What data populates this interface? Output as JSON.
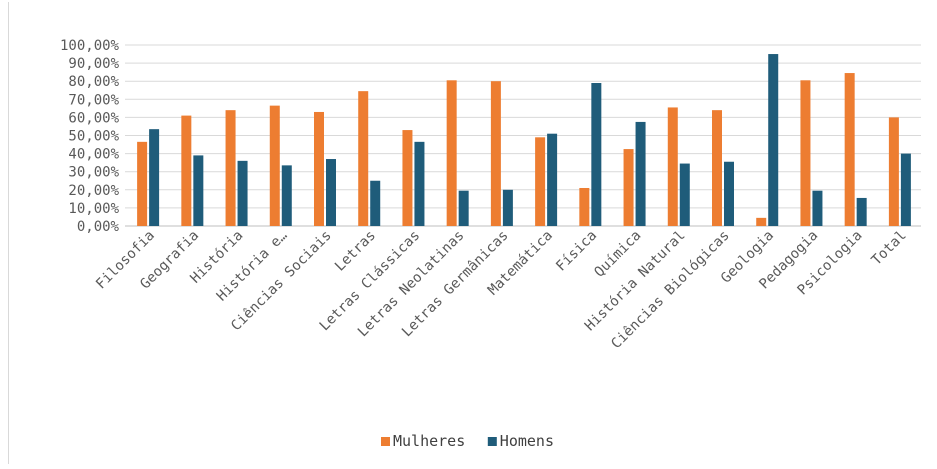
{
  "chart_data": {
    "type": "bar",
    "title": "",
    "xlabel": "",
    "ylabel": "",
    "ylim": [
      0,
      100
    ],
    "y_ticks": [
      "0,00%",
      "10,00%",
      "20,00%",
      "30,00%",
      "40,00%",
      "50,00%",
      "60,00%",
      "70,00%",
      "80,00%",
      "90,00%",
      "100,00%"
    ],
    "grid": true,
    "legend_position": "bottom",
    "categories": [
      "Filosofia",
      "Geografia",
      "História",
      "História e…",
      "Ciências Sociais",
      "Letras",
      "Letras Clássicas",
      "Letras Neolatinas",
      "Letras Germânicas",
      "Matemática",
      "Física",
      "Química",
      "História Natural",
      "Ciências Biológicas",
      "Geologia",
      "Pedagogia",
      "Psicologia",
      "Total"
    ],
    "series": [
      {
        "name": "Mulheres",
        "color": "#ed7d31",
        "values": [
          46.5,
          61,
          64,
          66.5,
          63,
          74.5,
          53,
          80.5,
          80,
          49,
          21,
          42.5,
          65.5,
          64,
          4.5,
          80.5,
          84.5,
          60
        ]
      },
      {
        "name": "Homens",
        "color": "#1f5c7a",
        "values": [
          53.5,
          39,
          36,
          33.5,
          37,
          25,
          46.5,
          19.5,
          20,
          51,
          79,
          57.5,
          34.5,
          35.5,
          95,
          19.5,
          15.5,
          40
        ]
      }
    ]
  }
}
